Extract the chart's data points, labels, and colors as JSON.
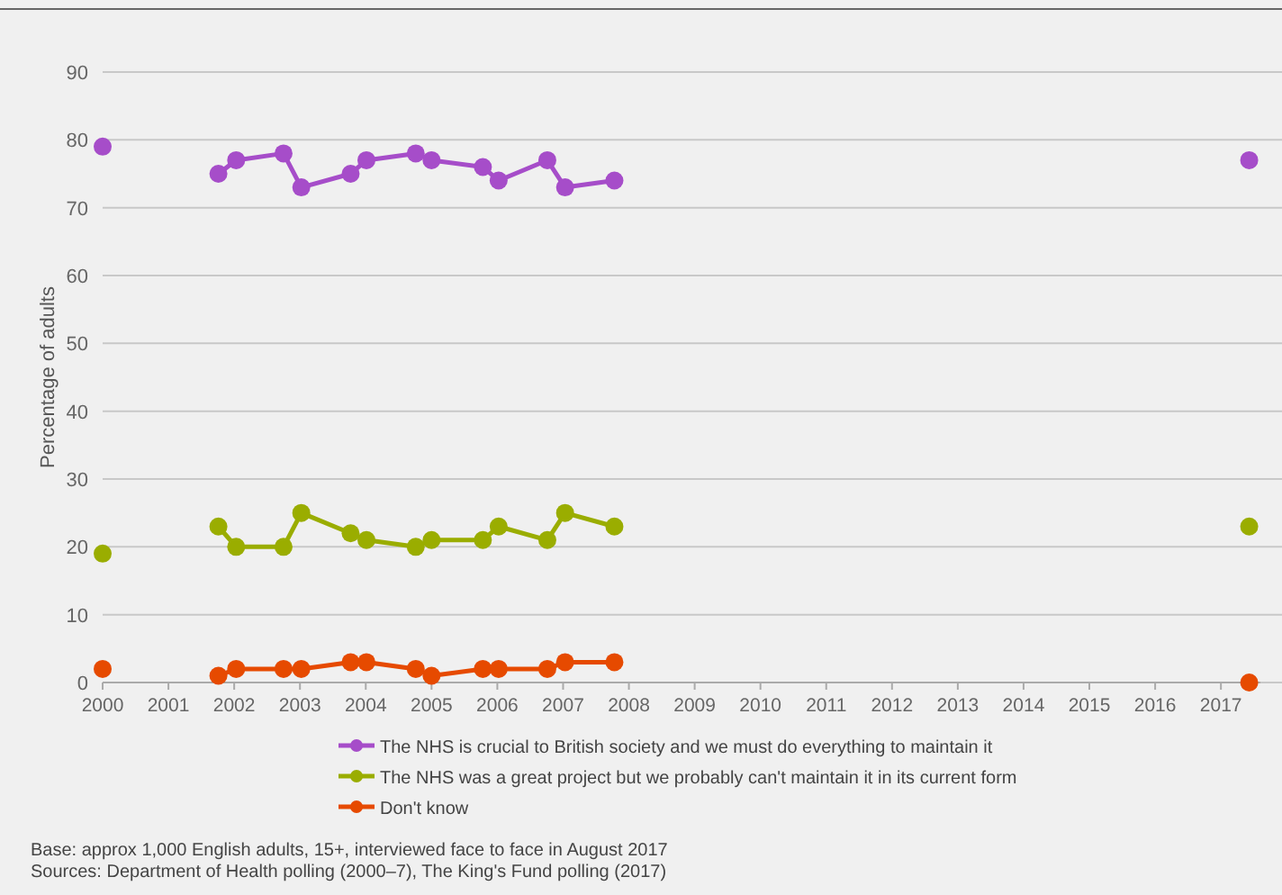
{
  "chart_data": {
    "type": "line",
    "ylabel": "Percentage of adults",
    "x": [
      2000,
      2001,
      2001.76,
      2002.03,
      2002.75,
      2003.02,
      2003.77,
      2004.01,
      2004.76,
      2005.0,
      2005.78,
      2006.02,
      2006.76,
      2007.03,
      2007.78,
      2009,
      2017.43
    ],
    "xlim": [
      2000,
      2017.6
    ],
    "xticks": [
      2000,
      2001,
      2002,
      2003,
      2004,
      2005,
      2006,
      2007,
      2008,
      2009,
      2010,
      2011,
      2012,
      2013,
      2014,
      2015,
      2016,
      2017
    ],
    "ylim": [
      0,
      90
    ],
    "yticks": [
      0,
      10,
      20,
      30,
      40,
      50,
      60,
      70,
      80,
      90
    ],
    "series": [
      {
        "name": "The NHS is crucial to British society and we must do everything to maintain it",
        "color": "#a64dc9",
        "values": [
          79,
          null,
          75,
          77,
          78,
          73,
          75,
          77,
          78,
          77,
          76,
          74,
          77,
          73,
          74,
          null,
          77
        ]
      },
      {
        "name": "The NHS was a great project but we probably  can't maintain it in its current  form",
        "color": "#9aad00",
        "values": [
          19,
          null,
          23,
          20,
          20,
          25,
          22,
          21,
          20,
          21,
          21,
          23,
          21,
          25,
          23,
          null,
          23
        ]
      },
      {
        "name": "Don't know",
        "color": "#e64a00",
        "values": [
          2,
          null,
          1,
          2,
          2,
          2,
          3,
          3,
          2,
          1,
          2,
          2,
          2,
          3,
          3,
          null,
          0
        ]
      }
    ],
    "grid": "y",
    "legend": "bottom",
    "marker": "circle",
    "annotations": [
      "Base: approx 1,000 English adults, 15+, interviewed face to face in August 2017",
      "Sources: Department of Health polling (2000–7), The King's Fund polling (2017)"
    ]
  }
}
